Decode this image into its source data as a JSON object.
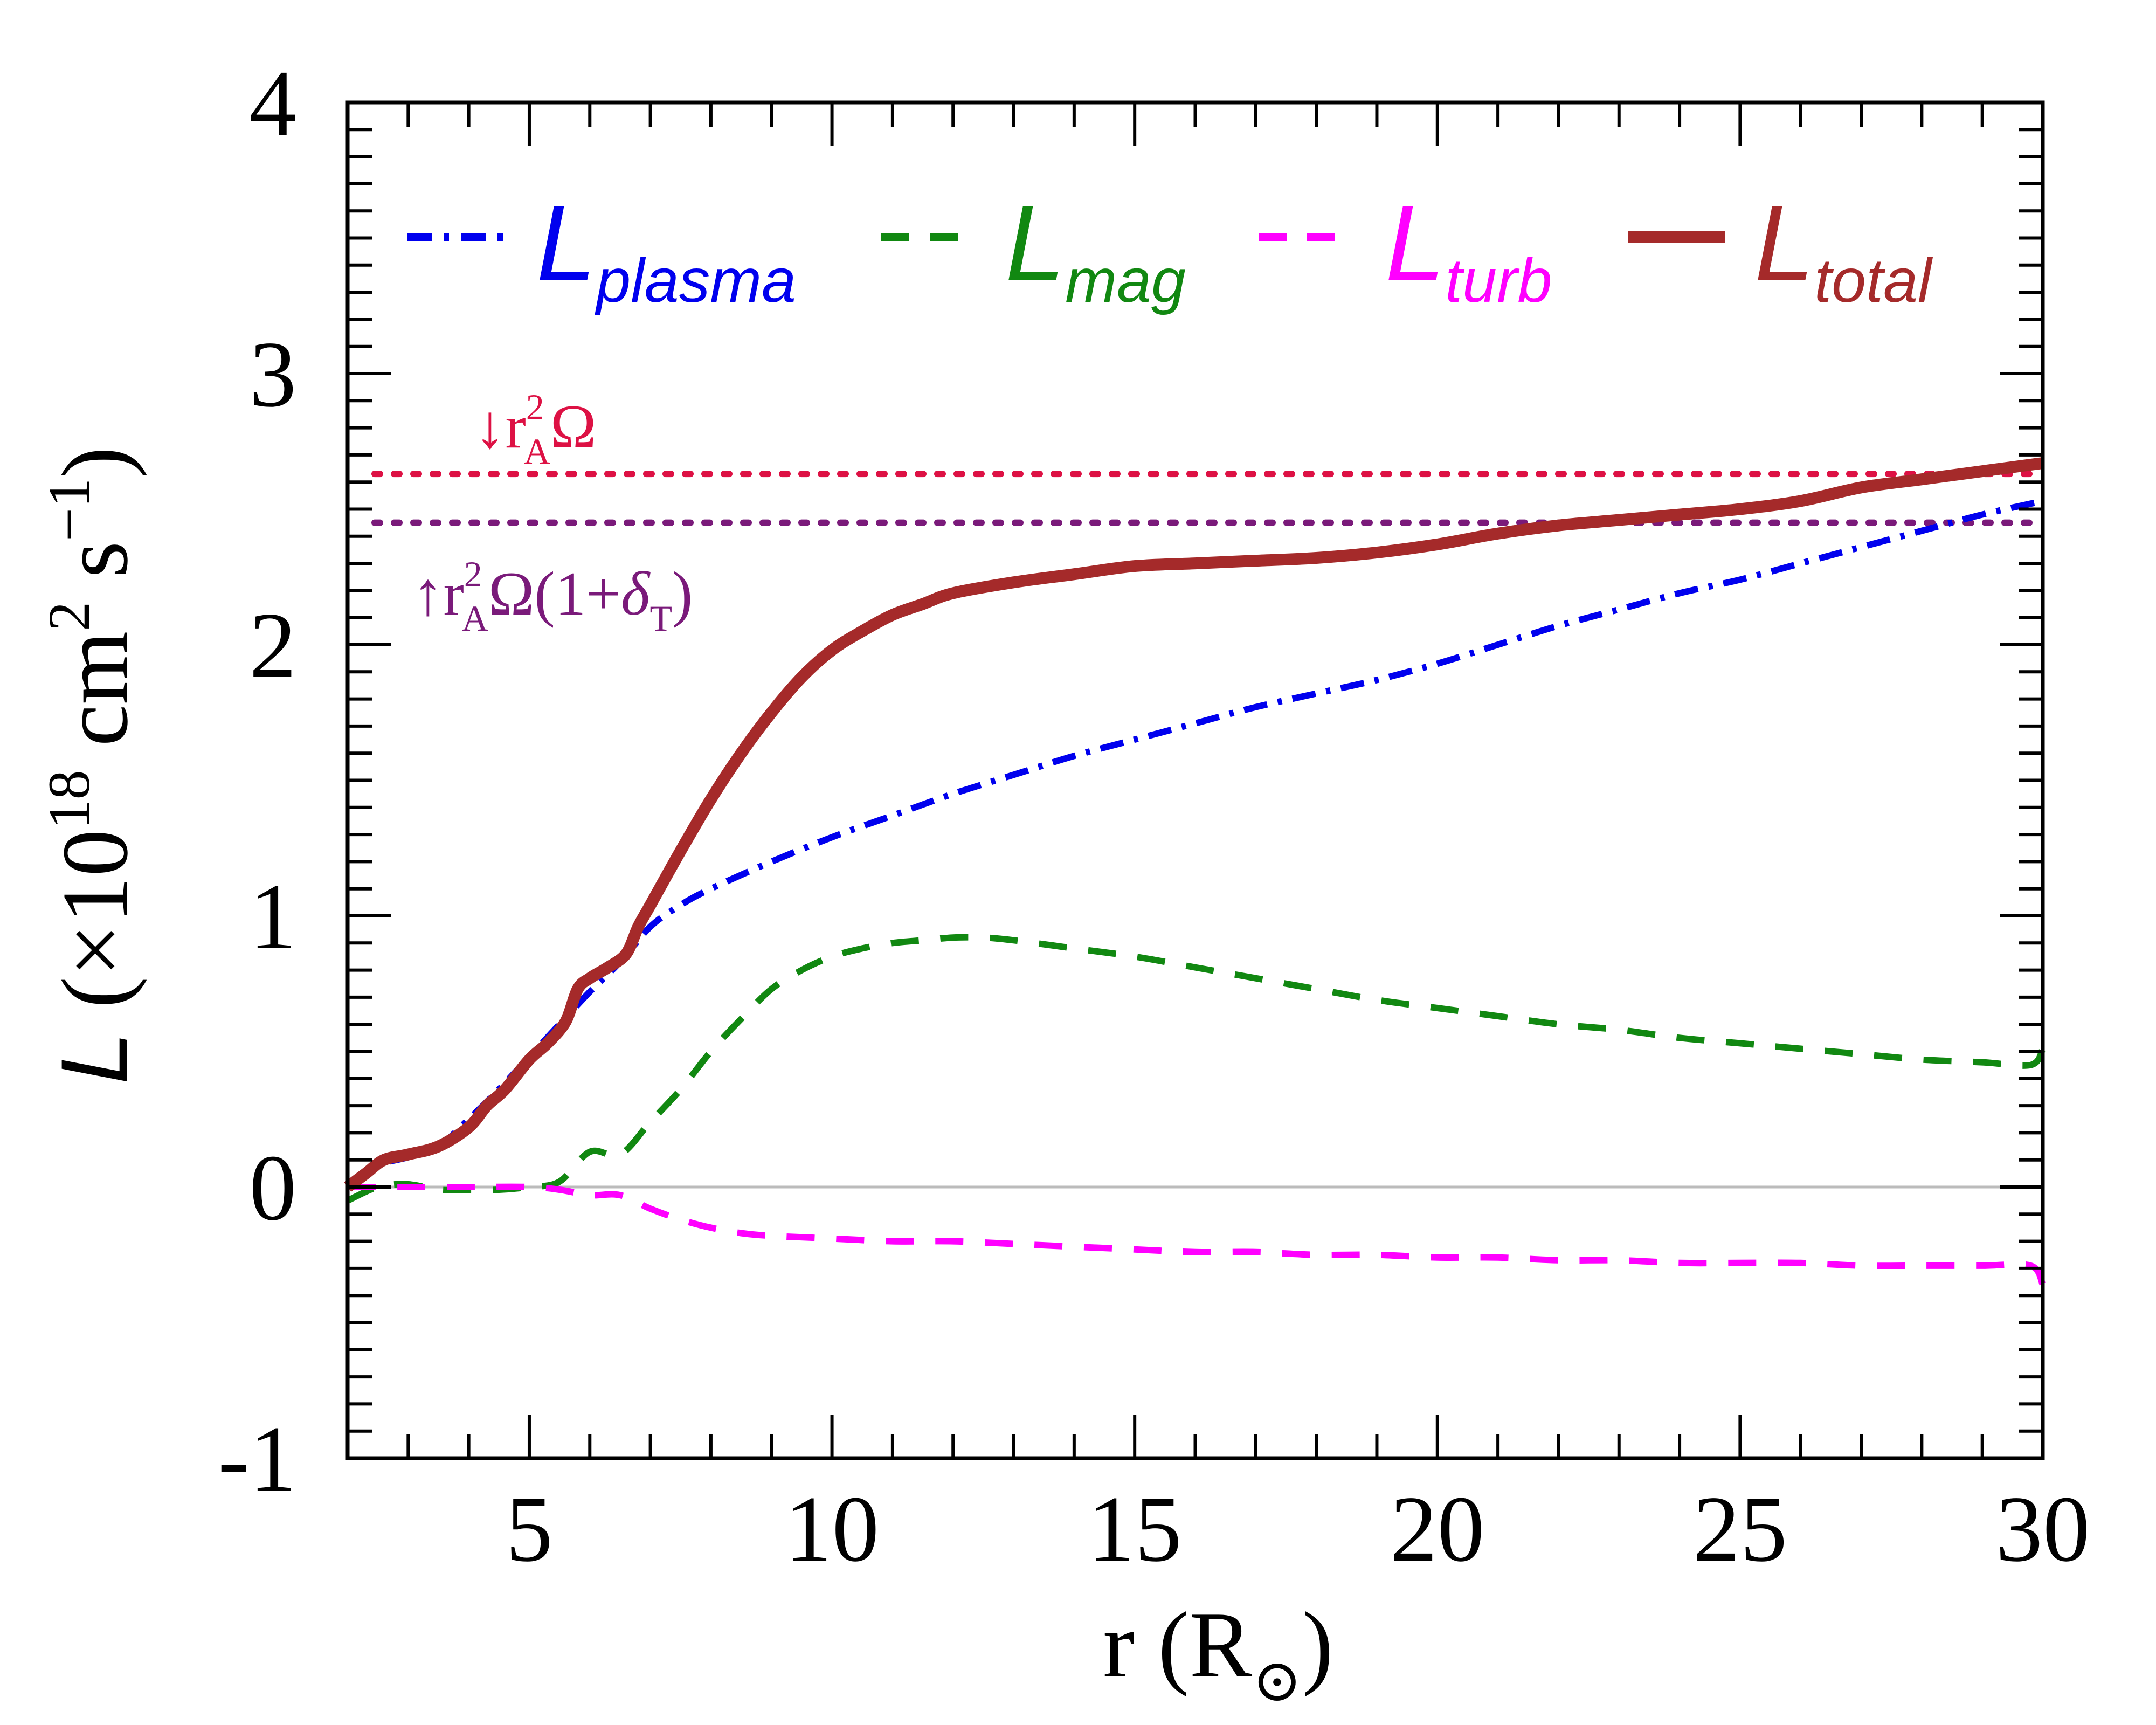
{
  "chart_data": {
    "type": "line",
    "title": "",
    "xlabel": {
      "main": "r (R",
      "sub": "⊙",
      "close": ")"
    },
    "ylabel": {
      "italic": "L",
      "pre": " (×10",
      "exp1": "18",
      "mid": " cm",
      "exp2": "2",
      "mid2": " s",
      "exp3": "−1",
      "close": ")"
    },
    "xlim": [
      2,
      30
    ],
    "ylim": [
      -1,
      4
    ],
    "xticks": [
      5,
      10,
      15,
      20,
      25,
      30
    ],
    "xtick_labels": [
      "5",
      "10",
      "15",
      "20",
      "25",
      "30"
    ],
    "yticks": [
      -1,
      0,
      1,
      2,
      3,
      4
    ],
    "ytick_labels": [
      "-1",
      "0",
      "1",
      "2",
      "3",
      "4"
    ],
    "zero_line": 0,
    "legend_position": "top",
    "series": [
      {
        "name": "plasma",
        "label_main": "L",
        "label_sub": "plasma",
        "color": "#0000ee",
        "style": "dashdot",
        "x": [
          2,
          2.5,
          3,
          3.5,
          4,
          4.5,
          5,
          5.5,
          6,
          6.5,
          7,
          7.5,
          8,
          9,
          10,
          11,
          12,
          13,
          14,
          15,
          16,
          17,
          18,
          19,
          20,
          21,
          22,
          23,
          24,
          25,
          26,
          27,
          28,
          29,
          30
        ],
        "y": [
          0.0,
          0.08,
          0.11,
          0.15,
          0.25,
          0.36,
          0.48,
          0.6,
          0.72,
          0.83,
          0.96,
          1.04,
          1.1,
          1.2,
          1.29,
          1.37,
          1.45,
          1.52,
          1.59,
          1.65,
          1.71,
          1.77,
          1.82,
          1.87,
          1.93,
          2.0,
          2.07,
          2.13,
          2.19,
          2.24,
          2.3,
          2.36,
          2.42,
          2.48,
          2.53
        ]
      },
      {
        "name": "mag",
        "label_main": "L",
        "label_sub": "mag",
        "color": "#118811",
        "style": "dashed",
        "x": [
          2,
          2.5,
          3,
          3.5,
          4,
          4.5,
          5,
          5.5,
          6,
          6.5,
          7,
          7.5,
          8,
          8.5,
          9,
          9.5,
          10,
          10.5,
          11,
          11.5,
          12,
          12.5,
          13,
          14,
          15,
          16,
          17,
          18,
          19,
          20,
          21,
          22,
          23,
          24,
          25,
          26,
          27,
          28,
          29,
          29.8,
          30
        ],
        "y": [
          -0.05,
          0.0,
          0.01,
          -0.01,
          -0.01,
          -0.01,
          0.0,
          0.02,
          0.13,
          0.12,
          0.24,
          0.36,
          0.5,
          0.62,
          0.73,
          0.8,
          0.85,
          0.88,
          0.9,
          0.91,
          0.92,
          0.92,
          0.91,
          0.88,
          0.85,
          0.81,
          0.77,
          0.73,
          0.69,
          0.66,
          0.63,
          0.6,
          0.58,
          0.55,
          0.53,
          0.51,
          0.49,
          0.47,
          0.46,
          0.45,
          0.51
        ]
      },
      {
        "name": "turb",
        "label_main": "L",
        "label_sub": "turb",
        "color": "#ff00ff",
        "style": "dashed",
        "x": [
          2,
          3,
          4,
          5,
          5.5,
          6,
          6.5,
          7,
          7.5,
          8,
          8.5,
          9,
          10,
          11,
          12,
          13,
          14,
          15,
          16,
          17,
          18,
          19,
          20,
          21,
          22,
          23,
          24,
          25,
          26,
          27,
          28,
          29,
          29.8,
          30
        ],
        "y": [
          0.0,
          0.0,
          0.0,
          0.0,
          -0.01,
          -0.03,
          -0.03,
          -0.08,
          -0.12,
          -0.15,
          -0.17,
          -0.18,
          -0.19,
          -0.2,
          -0.2,
          -0.21,
          -0.22,
          -0.23,
          -0.24,
          -0.24,
          -0.25,
          -0.25,
          -0.26,
          -0.26,
          -0.27,
          -0.27,
          -0.28,
          -0.28,
          -0.28,
          -0.29,
          -0.29,
          -0.29,
          -0.29,
          -0.36
        ]
      },
      {
        "name": "total",
        "label_main": "L",
        "label_sub": "total",
        "color": "#a52a2a",
        "style": "solid",
        "x": [
          2,
          2.3,
          2.6,
          3,
          3.5,
          4,
          4.3,
          4.6,
          5,
          5.3,
          5.6,
          5.8,
          6,
          6.3,
          6.6,
          6.8,
          7,
          7.5,
          8,
          8.5,
          9,
          9.5,
          10,
          10.5,
          11,
          11.5,
          12,
          13,
          14,
          15,
          16,
          17,
          18,
          19,
          20,
          21,
          22,
          23,
          24,
          25,
          26,
          27,
          28,
          29,
          30
        ],
        "y": [
          0.0,
          0.05,
          0.1,
          0.12,
          0.15,
          0.22,
          0.3,
          0.36,
          0.47,
          0.53,
          0.61,
          0.73,
          0.77,
          0.81,
          0.86,
          0.96,
          1.04,
          1.24,
          1.43,
          1.6,
          1.75,
          1.88,
          1.98,
          2.05,
          2.11,
          2.15,
          2.19,
          2.23,
          2.26,
          2.29,
          2.3,
          2.31,
          2.32,
          2.34,
          2.37,
          2.41,
          2.44,
          2.46,
          2.48,
          2.5,
          2.53,
          2.58,
          2.61,
          2.64,
          2.67
        ]
      }
    ],
    "reference_lines": [
      {
        "name": "r_A^2 Omega",
        "y": 2.63,
        "color": "#dd1144",
        "style": "dotted",
        "arrow": "↓",
        "text": "r",
        "sub": "A",
        "sup": "2",
        "rest": "Ω"
      },
      {
        "name": "r_A^2 Omega (1+delta_T)",
        "y": 2.45,
        "color": "#7a1a7a",
        "style": "dotted",
        "arrow": "↑",
        "text": "r",
        "sub": "A",
        "sup": "2",
        "rest": "Ω(1+",
        "delta": "δ",
        "delta_sub": "T",
        "close": ")"
      }
    ]
  }
}
